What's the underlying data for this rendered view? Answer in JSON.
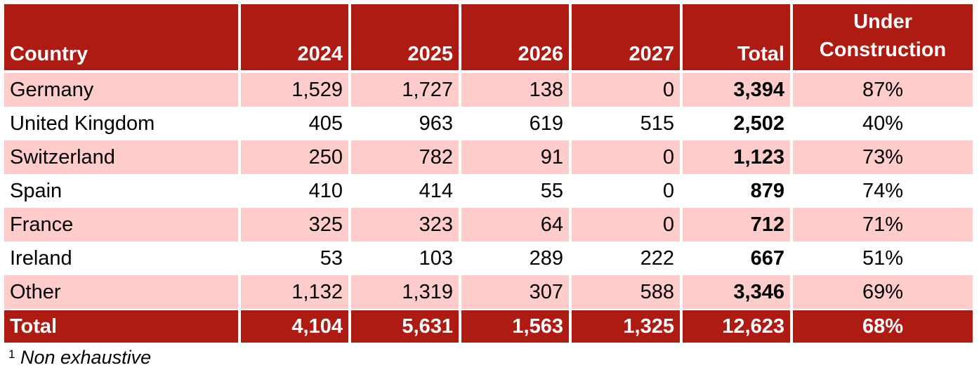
{
  "header": {
    "country": "Country",
    "y2024": "2024",
    "y2025": "2025",
    "y2026": "2026",
    "y2027": "2027",
    "total": "Total",
    "under_line1": "Under",
    "under_line2": "Construction"
  },
  "rows": [
    {
      "country": "Germany",
      "y2024": "1,529",
      "y2025": "1,727",
      "y2026": "138",
      "y2027": "0",
      "total": "3,394",
      "under": "87%"
    },
    {
      "country": "United Kingdom",
      "y2024": "405",
      "y2025": "963",
      "y2026": "619",
      "y2027": "515",
      "total": "2,502",
      "under": "40%"
    },
    {
      "country": "Switzerland",
      "y2024": "250",
      "y2025": "782",
      "y2026": "91",
      "y2027": "0",
      "total": "1,123",
      "under": "73%"
    },
    {
      "country": "Spain",
      "y2024": "410",
      "y2025": "414",
      "y2026": "55",
      "y2027": "0",
      "total": "879",
      "under": "74%"
    },
    {
      "country": "France",
      "y2024": "325",
      "y2025": "323",
      "y2026": "64",
      "y2027": "0",
      "total": "712",
      "under": "71%"
    },
    {
      "country": "Ireland",
      "y2024": "53",
      "y2025": "103",
      "y2026": "289",
      "y2027": "222",
      "total": "667",
      "under": "51%"
    },
    {
      "country": "Other",
      "y2024": "1,132",
      "y2025": "1,319",
      "y2026": "307",
      "y2027": "588",
      "total": "3,346",
      "under": "69%"
    }
  ],
  "totals": {
    "country": "Total",
    "y2024": "4,104",
    "y2025": "5,631",
    "y2026": "1,563",
    "y2027": "1,325",
    "total": "12,623",
    "under": "68%"
  },
  "footnote": {
    "marker": "1",
    "text": "Non exhaustive"
  },
  "colors": {
    "header_bg": "#ad1b12",
    "shaded_row": "#ffcccc"
  }
}
